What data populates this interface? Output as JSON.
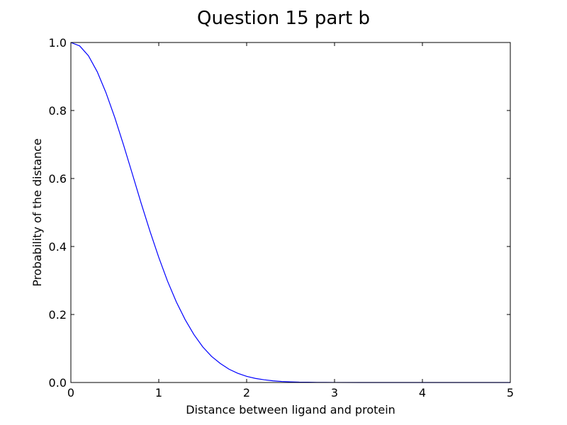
{
  "chart_data": {
    "type": "line",
    "title": "Question 15 part b",
    "xlabel": "Distance between ligand and protein",
    "ylabel": "Probability of the distance",
    "xlim": [
      0,
      5
    ],
    "ylim": [
      0,
      1
    ],
    "xticks": [
      0,
      1,
      2,
      3,
      4,
      5
    ],
    "xtick_labels": [
      "0",
      "1",
      "2",
      "3",
      "4",
      "5"
    ],
    "yticks": [
      0,
      0.2,
      0.4,
      0.6,
      0.8,
      1.0
    ],
    "ytick_labels": [
      "0.0",
      "0.2",
      "0.4",
      "0.6",
      "0.8",
      "1.0"
    ],
    "grid": false,
    "series": [
      {
        "color": "#0000ff",
        "x": [
          0,
          0.1,
          0.2,
          0.3,
          0.4,
          0.5,
          0.6,
          0.7,
          0.8,
          0.9,
          1.0,
          1.1,
          1.2,
          1.3,
          1.4,
          1.5,
          1.6,
          1.7,
          1.8,
          1.9,
          2.0,
          2.1,
          2.2,
          2.3,
          2.4,
          2.5,
          2.6,
          2.7,
          2.8,
          2.9,
          3.0,
          3.5,
          4.0,
          4.5,
          5.0
        ],
        "y": [
          1.0,
          0.99,
          0.961,
          0.914,
          0.852,
          0.779,
          0.698,
          0.613,
          0.527,
          0.445,
          0.368,
          0.298,
          0.237,
          0.185,
          0.141,
          0.105,
          0.077,
          0.056,
          0.039,
          0.027,
          0.018,
          0.012,
          0.008,
          0.005,
          0.003,
          0.002,
          0.001,
          0.0007,
          0.0004,
          0.0002,
          0.0001,
          0.0,
          0.0,
          0.0,
          0.0
        ]
      }
    ]
  }
}
